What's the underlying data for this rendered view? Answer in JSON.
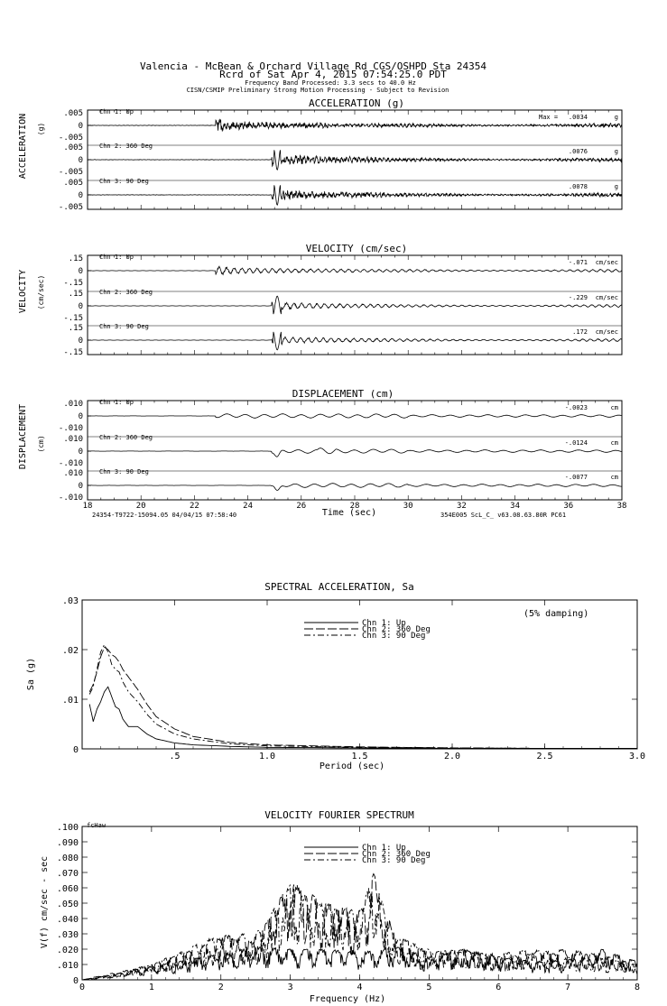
{
  "header": {
    "line1": "Valencia - McBean & Orchard Village Rd      CGS/OSHPD Sta 24354",
    "line2": "Rcrd of Sat Apr  4, 2015 07:54:25.0 PDT",
    "line3": "Frequency Band Processed: 3.3 secs to 40.0 Hz",
    "line4": "CISN/CSMIP Preliminary Strong Motion Processing - Subject to Revision"
  },
  "chart_data": [
    {
      "type": "line",
      "title": "ACCELERATION (g)",
      "ylabel": "ACCELERATION",
      "yunit": "(g)",
      "xlim": [
        18,
        38
      ],
      "trace_ticks": [
        ".005",
        "0",
        "-.005"
      ],
      "max_prefix": "Max =",
      "series": [
        {
          "name": "Chn 1: Up",
          "peak": ".0034",
          "unit": "g",
          "onset": 22.8,
          "peak_time": 22.9,
          "strong_end": 27.0
        },
        {
          "name": "Chn 2: 360 Deg",
          "peak": ".0076",
          "unit": "g",
          "onset": 24.9,
          "peak_time": 25.1,
          "strong_end": 29.0
        },
        {
          "name": "Chn 3: 90 Deg",
          "peak": ".0078",
          "unit": "g",
          "onset": 24.9,
          "peak_time": 25.1,
          "strong_end": 29.0
        }
      ]
    },
    {
      "type": "line",
      "title": "VELOCITY (cm/sec)",
      "ylabel": "VELOCITY",
      "yunit": "(cm/sec)",
      "xlim": [
        18,
        38
      ],
      "trace_ticks": [
        ".15",
        "0",
        "-.15"
      ],
      "series": [
        {
          "name": "Chn 1: Up",
          "peak": "-.071",
          "unit": "cm/sec",
          "onset": 22.8,
          "peak_time": 22.9,
          "strong_end": 28.0
        },
        {
          "name": "Chn 2: 360 Deg",
          "peak": "-.229",
          "unit": "cm/sec",
          "onset": 24.9,
          "peak_time": 25.1,
          "strong_end": 29.5
        },
        {
          "name": "Chn 3: 90 Deg",
          "peak": ".172",
          "unit": "cm/sec",
          "onset": 24.9,
          "peak_time": 25.1,
          "strong_end": 29.5
        }
      ]
    },
    {
      "type": "line",
      "title": "DISPLACEMENT (cm)",
      "ylabel": "DISPLACEMENT",
      "yunit": "(cm)",
      "xlim": [
        18,
        38
      ],
      "trace_ticks": [
        ".010",
        "0",
        "-.010"
      ],
      "series": [
        {
          "name": "Chn 1: Up",
          "peak": "-.0023",
          "unit": "cm",
          "onset": 22.8,
          "peak_time": 23.5,
          "strong_end": 30.0
        },
        {
          "name": "Chn 2: 360 Deg",
          "peak": "-.0124",
          "unit": "cm",
          "onset": 24.9,
          "peak_time": 25.1,
          "strong_end": 30.0
        },
        {
          "name": "Chn 3: 90 Deg",
          "peak": "-.0077",
          "unit": "cm",
          "onset": 24.9,
          "peak_time": 25.1,
          "strong_end": 30.0
        }
      ],
      "x_ticks": [
        "18",
        "20",
        "22",
        "24",
        "26",
        "28",
        "30",
        "32",
        "34",
        "36",
        "38"
      ],
      "xlabel": "Time (sec)",
      "footer_left": "24354-T9722-15094.05 04/04/15 07:58:40",
      "footer_right": "354E005  ScL_C_  v63.08.63.80R PC61"
    },
    {
      "type": "line",
      "title": "SPECTRAL ACCELERATION, Sa",
      "ylabel": "Sa (g)",
      "xlabel": "Period (sec)",
      "xlim": [
        0,
        3.0
      ],
      "ylim": [
        0,
        0.03
      ],
      "x_ticks": [
        ".5",
        "1.0",
        "1.5",
        "2.0",
        "2.5",
        "3.0"
      ],
      "y_ticks": [
        ".03",
        ".02",
        ".01",
        "0"
      ],
      "annotation": "(5% damping)",
      "legend": "top-center",
      "series": [
        {
          "name": "Chn 1: Up",
          "dash": "solid",
          "x": [
            0.04,
            0.06,
            0.08,
            0.1,
            0.12,
            0.14,
            0.16,
            0.18,
            0.2,
            0.22,
            0.25,
            0.3,
            0.35,
            0.4,
            0.5,
            0.6,
            0.8,
            1.0,
            1.5,
            2.0,
            2.5,
            3.0
          ],
          "y": [
            0.009,
            0.0055,
            0.008,
            0.0095,
            0.0115,
            0.0125,
            0.0105,
            0.0085,
            0.008,
            0.006,
            0.0045,
            0.0045,
            0.003,
            0.002,
            0.0012,
            0.0008,
            0.0005,
            0.0003,
            0.0002,
            0.0001,
            0.0001,
            0.0001
          ]
        },
        {
          "name": "Chn 2: 360 Deg",
          "dash": "long",
          "x": [
            0.04,
            0.06,
            0.08,
            0.1,
            0.12,
            0.14,
            0.16,
            0.18,
            0.2,
            0.22,
            0.25,
            0.3,
            0.35,
            0.4,
            0.5,
            0.6,
            0.8,
            1.0,
            1.5,
            2.0,
            2.5,
            3.0
          ],
          "y": [
            0.0115,
            0.013,
            0.0155,
            0.0185,
            0.0205,
            0.02,
            0.019,
            0.0185,
            0.0175,
            0.016,
            0.0145,
            0.012,
            0.009,
            0.0065,
            0.004,
            0.0025,
            0.0013,
            0.0008,
            0.0004,
            0.0002,
            0.0001,
            0.0001
          ]
        },
        {
          "name": "Chn 3: 90 Deg",
          "dash": "dashdot",
          "x": [
            0.04,
            0.06,
            0.08,
            0.1,
            0.12,
            0.14,
            0.16,
            0.18,
            0.2,
            0.22,
            0.25,
            0.3,
            0.35,
            0.4,
            0.5,
            0.6,
            0.8,
            1.0,
            1.5,
            2.0,
            2.5,
            3.0
          ],
          "y": [
            0.011,
            0.0125,
            0.016,
            0.0195,
            0.021,
            0.0195,
            0.017,
            0.016,
            0.0155,
            0.0135,
            0.0115,
            0.0095,
            0.007,
            0.005,
            0.003,
            0.002,
            0.001,
            0.0006,
            0.0003,
            0.0002,
            0.0001,
            0.0001
          ]
        }
      ]
    },
    {
      "type": "line",
      "title": "VELOCITY FOURIER SPECTRUM",
      "ylabel": "V(f)  cm/sec - sec",
      "xlabel": "Frequency (Hz)",
      "xlim": [
        0,
        8
      ],
      "ylim": [
        0,
        0.1
      ],
      "x_ticks": [
        "0",
        "1",
        "2",
        "3",
        "4",
        "5",
        "6",
        "7",
        "8"
      ],
      "y_ticks": [
        ".100",
        ".090",
        ".080",
        ".070",
        ".060",
        ".050",
        ".040",
        ".030",
        ".020",
        ".010",
        "0"
      ],
      "annotation": "fcHaw",
      "legend": "top-center",
      "series": [
        {
          "name": "Chn 1: Up",
          "dash": "solid",
          "x": [
            0,
            0.5,
            1.0,
            1.5,
            2.0,
            2.5,
            3.0,
            3.5,
            4.0,
            4.5,
            5.0,
            5.5,
            6.0,
            6.5,
            7.0,
            7.5,
            8.0
          ],
          "y": [
            0.0,
            0.004,
            0.009,
            0.013,
            0.017,
            0.022,
            0.02,
            0.02,
            0.018,
            0.022,
            0.015,
            0.02,
            0.015,
            0.012,
            0.013,
            0.02,
            0.012
          ]
        },
        {
          "name": "Chn 2: 360 Deg",
          "dash": "long",
          "x": [
            0,
            0.5,
            1.0,
            1.5,
            2.0,
            2.5,
            3.0,
            3.5,
            4.0,
            4.2,
            4.5,
            5.0,
            5.5,
            6.0,
            6.5,
            7.0,
            7.5,
            8.0
          ],
          "y": [
            0.0,
            0.005,
            0.01,
            0.018,
            0.028,
            0.025,
            0.065,
            0.05,
            0.045,
            0.07,
            0.03,
            0.018,
            0.02,
            0.015,
            0.018,
            0.02,
            0.016,
            0.01
          ]
        },
        {
          "name": "Chn 3: 90 Deg",
          "dash": "dashdot",
          "x": [
            0,
            0.5,
            1.0,
            1.5,
            2.0,
            2.5,
            3.0,
            3.5,
            4.0,
            4.2,
            4.5,
            5.0,
            5.5,
            6.0,
            6.5,
            7.0,
            7.5,
            8.0
          ],
          "y": [
            0.0,
            0.004,
            0.01,
            0.02,
            0.03,
            0.03,
            0.062,
            0.048,
            0.045,
            0.068,
            0.028,
            0.02,
            0.018,
            0.017,
            0.02,
            0.015,
            0.014,
            0.01
          ]
        }
      ]
    }
  ]
}
